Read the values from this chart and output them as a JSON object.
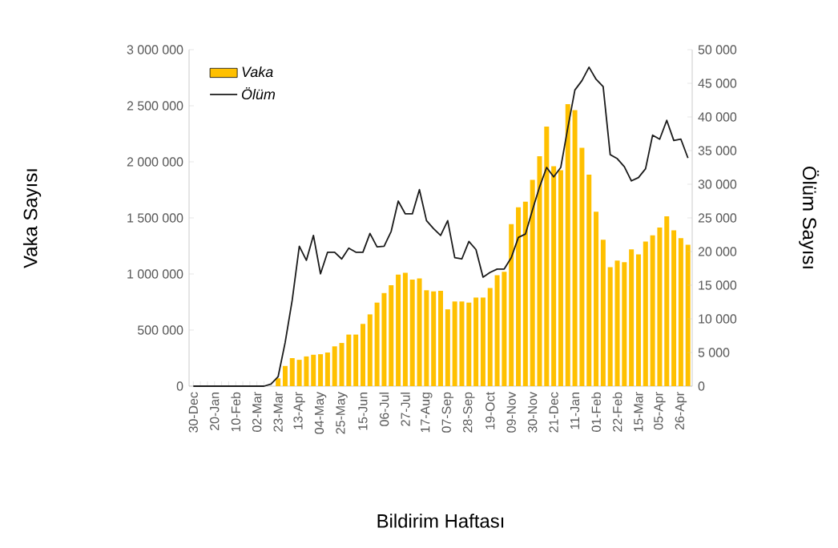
{
  "chart_data": {
    "type": "bar",
    "xlabel": "Bildirim Haftası",
    "ylabel": "Vaka Sayısı",
    "y2label": "Ölüm Sayısı",
    "categories": [
      "30-Dec",
      null,
      null,
      "20-Jan",
      null,
      null,
      "10-Feb",
      null,
      null,
      "02-Mar",
      null,
      null,
      "23-Mar",
      null,
      null,
      "13-Apr",
      null,
      null,
      "04-May",
      null,
      null,
      "25-May",
      null,
      null,
      "15-Jun",
      null,
      null,
      "06-Jul",
      null,
      null,
      "27-Jul",
      null,
      null,
      "17-Aug",
      null,
      null,
      "07-Sep",
      null,
      null,
      "28-Sep",
      null,
      null,
      "19-Oct",
      null,
      null,
      "09-Nov",
      null,
      null,
      "30-Nov",
      null,
      null,
      "21-Dec",
      null,
      null,
      "11-Jan",
      null,
      null,
      "01-Feb",
      null,
      null,
      "22-Feb",
      null,
      null,
      "15-Mar",
      null,
      null,
      "05-Apr",
      null,
      null,
      "26-Apr",
      null
    ],
    "series": [
      {
        "name": "Vaka",
        "color": "#ffc000",
        "values": [
          0,
          0,
          0,
          0,
          0,
          0,
          0,
          0,
          0,
          0,
          0,
          0,
          70000,
          180000,
          250000,
          235000,
          265000,
          280000,
          285000,
          300000,
          355000,
          385000,
          460000,
          460000,
          555000,
          640000,
          745000,
          830000,
          900000,
          995000,
          1010000,
          950000,
          960000,
          855000,
          845000,
          850000,
          685000,
          755000,
          755000,
          745000,
          790000,
          790000,
          875000,
          990000,
          1020000,
          1445000,
          1595000,
          1645000,
          1840000,
          2050000,
          2315000,
          1960000,
          1925000,
          2515000,
          2460000,
          2125000,
          1885000,
          1555000,
          1305000,
          1060000,
          1120000,
          1105000,
          1220000,
          1175000,
          1290000,
          1345000,
          1415000,
          1515000,
          1390000,
          1320000,
          1260000
        ]
      },
      {
        "name": "Ölüm",
        "type": "line",
        "axis": "y2",
        "color": "#1a1a1a",
        "values": [
          0,
          0,
          0,
          0,
          0,
          0,
          0,
          0,
          0,
          0,
          0,
          300,
          1400,
          6500,
          12800,
          20800,
          18700,
          22400,
          16700,
          19900,
          19900,
          18900,
          20500,
          19900,
          19900,
          22700,
          20700,
          20800,
          23000,
          27500,
          25600,
          25600,
          29200,
          24600,
          23400,
          22400,
          24600,
          19100,
          18900,
          21500,
          20300,
          16200,
          16900,
          17400,
          17400,
          19100,
          22100,
          22600,
          26200,
          29600,
          32500,
          31100,
          32500,
          38400,
          44000,
          45400,
          47400,
          45600,
          44500,
          34400,
          33800,
          32600,
          30500,
          31000,
          32300,
          37300,
          36700,
          39500,
          36500,
          36700,
          33900
        ]
      }
    ],
    "ylim": [
      0,
      3000000
    ],
    "yticks": [
      0,
      {
        "value": 500000,
        "label": "500 000"
      },
      {
        "value": 1000000,
        "label": "1 000 000"
      },
      {
        "value": 1500000,
        "label": "1 500 000"
      },
      {
        "value": 2000000,
        "label": "2 000 000"
      },
      {
        "value": 2500000,
        "label": "2 500 000"
      },
      {
        "value": 3000000,
        "label": "3 000 000"
      }
    ],
    "y2lim": [
      0,
      50000
    ],
    "y2ticks": [
      0,
      {
        "value": 5000,
        "label": "5 000"
      },
      {
        "value": 10000,
        "label": "10 000"
      },
      {
        "value": 15000,
        "label": "15 000"
      },
      {
        "value": 20000,
        "label": "20 000"
      },
      {
        "value": 25000,
        "label": "25 000"
      },
      {
        "value": 30000,
        "label": "30 000"
      },
      {
        "value": 35000,
        "label": "35 000"
      },
      {
        "value": 40000,
        "label": "40 000"
      },
      {
        "value": 45000,
        "label": "45 000"
      },
      {
        "value": 50000,
        "label": "50 000"
      }
    ],
    "legend": "top left",
    "grid": false
  }
}
